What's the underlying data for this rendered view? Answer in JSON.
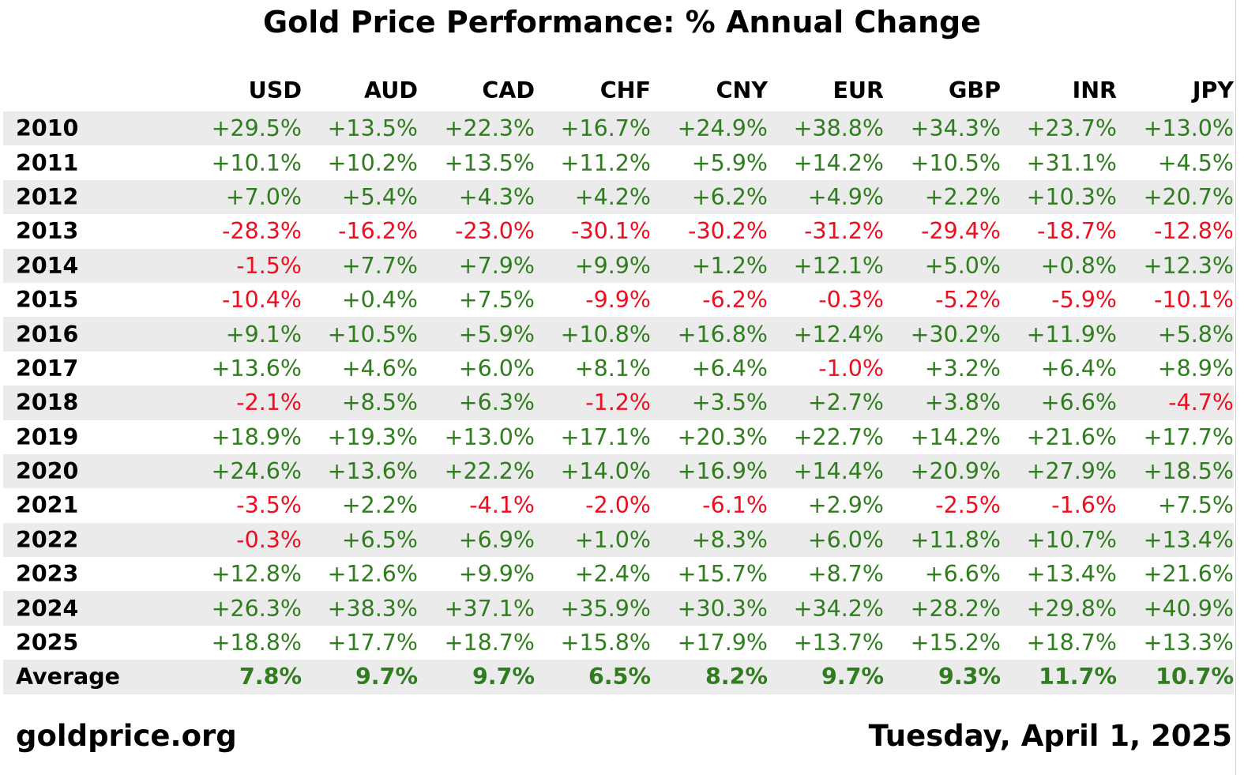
{
  "chart_data": {
    "type": "table",
    "title": "Gold Price Performance: % Annual Change",
    "row_header_label": "",
    "columns": [
      "USD",
      "AUD",
      "CAD",
      "CHF",
      "CNY",
      "EUR",
      "GBP",
      "INR",
      "JPY"
    ],
    "rows": [
      {
        "label": "2010",
        "cells": [
          "+29.5%",
          "+13.5%",
          "+22.3%",
          "+16.7%",
          "+24.9%",
          "+38.8%",
          "+34.3%",
          "+23.7%",
          "+13.0%"
        ]
      },
      {
        "label": "2011",
        "cells": [
          "+10.1%",
          "+10.2%",
          "+13.5%",
          "+11.2%",
          "+5.9%",
          "+14.2%",
          "+10.5%",
          "+31.1%",
          "+4.5%"
        ]
      },
      {
        "label": "2012",
        "cells": [
          "+7.0%",
          "+5.4%",
          "+4.3%",
          "+4.2%",
          "+6.2%",
          "+4.9%",
          "+2.2%",
          "+10.3%",
          "+20.7%"
        ]
      },
      {
        "label": "2013",
        "cells": [
          "-28.3%",
          "-16.2%",
          "-23.0%",
          "-30.1%",
          "-30.2%",
          "-31.2%",
          "-29.4%",
          "-18.7%",
          "-12.8%"
        ]
      },
      {
        "label": "2014",
        "cells": [
          "-1.5%",
          "+7.7%",
          "+7.9%",
          "+9.9%",
          "+1.2%",
          "+12.1%",
          "+5.0%",
          "+0.8%",
          "+12.3%"
        ]
      },
      {
        "label": "2015",
        "cells": [
          "-10.4%",
          "+0.4%",
          "+7.5%",
          "-9.9%",
          "-6.2%",
          "-0.3%",
          "-5.2%",
          "-5.9%",
          "-10.1%"
        ]
      },
      {
        "label": "2016",
        "cells": [
          "+9.1%",
          "+10.5%",
          "+5.9%",
          "+10.8%",
          "+16.8%",
          "+12.4%",
          "+30.2%",
          "+11.9%",
          "+5.8%"
        ]
      },
      {
        "label": "2017",
        "cells": [
          "+13.6%",
          "+4.6%",
          "+6.0%",
          "+8.1%",
          "+6.4%",
          "-1.0%",
          "+3.2%",
          "+6.4%",
          "+8.9%"
        ]
      },
      {
        "label": "2018",
        "cells": [
          "-2.1%",
          "+8.5%",
          "+6.3%",
          "-1.2%",
          "+3.5%",
          "+2.7%",
          "+3.8%",
          "+6.6%",
          "-4.7%"
        ]
      },
      {
        "label": "2019",
        "cells": [
          "+18.9%",
          "+19.3%",
          "+13.0%",
          "+17.1%",
          "+20.3%",
          "+22.7%",
          "+14.2%",
          "+21.6%",
          "+17.7%"
        ]
      },
      {
        "label": "2020",
        "cells": [
          "+24.6%",
          "+13.6%",
          "+22.2%",
          "+14.0%",
          "+16.9%",
          "+14.4%",
          "+20.9%",
          "+27.9%",
          "+18.5%"
        ]
      },
      {
        "label": "2021",
        "cells": [
          "-3.5%",
          "+2.2%",
          "-4.1%",
          "-2.0%",
          "-6.1%",
          "+2.9%",
          "-2.5%",
          "-1.6%",
          "+7.5%"
        ]
      },
      {
        "label": "2022",
        "cells": [
          "-0.3%",
          "+6.5%",
          "+6.9%",
          "+1.0%",
          "+8.3%",
          "+6.0%",
          "+11.8%",
          "+10.7%",
          "+13.4%"
        ]
      },
      {
        "label": "2023",
        "cells": [
          "+12.8%",
          "+12.6%",
          "+9.9%",
          "+2.4%",
          "+15.7%",
          "+8.7%",
          "+6.6%",
          "+13.4%",
          "+21.6%"
        ]
      },
      {
        "label": "2024",
        "cells": [
          "+26.3%",
          "+38.3%",
          "+37.1%",
          "+35.9%",
          "+30.3%",
          "+34.2%",
          "+28.2%",
          "+29.8%",
          "+40.9%"
        ]
      },
      {
        "label": "2025",
        "cells": [
          "+18.8%",
          "+17.7%",
          "+18.7%",
          "+15.8%",
          "+17.9%",
          "+13.7%",
          "+15.2%",
          "+18.7%",
          "+13.3%"
        ]
      },
      {
        "label": "Average",
        "cells": [
          "7.8%",
          "9.7%",
          "9.7%",
          "6.5%",
          "8.2%",
          "9.7%",
          "9.3%",
          "11.7%",
          "10.7%"
        ]
      }
    ],
    "colors": {
      "positive": "#2f7d1e",
      "negative": "#ee0e1f",
      "stripe": "#ebebeb"
    }
  },
  "footer": {
    "source": "goldprice.org",
    "date": "Tuesday, April 1, 2025"
  }
}
